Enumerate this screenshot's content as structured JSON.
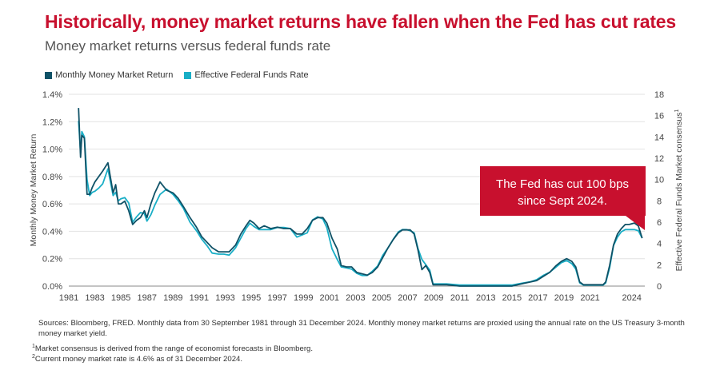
{
  "header": {
    "title": "Historically, money market returns have fallen when the Fed has cut rates",
    "subtitle": "Money market returns versus federal funds rate"
  },
  "legend": {
    "items": [
      {
        "label": "Monthly Money Market Return",
        "color": "#0f5267"
      },
      {
        "label": "Effective Federal Funds Rate",
        "color": "#19aec6"
      }
    ]
  },
  "annotation": {
    "text_line1": "The Fed has cut 100 bps",
    "text_line2": "since Sept 2024.",
    "color": "#c8102e"
  },
  "footnotes": {
    "sources": "Sources: Bloomberg, FRED. Monthly data from 30 September 1981 through 31 December 2024. Monthly money market returns are proxied using the annual rate on the US Treasury 3-month money market yield.",
    "note1_mark": "1",
    "note1": "Market consensus is derived from the range of economist forecasts in Bloomberg.",
    "note2_mark": "2",
    "note2": "Current money market rate is 4.6% as of 31 December 2024."
  },
  "chart_data": {
    "type": "line",
    "title": "Money market returns versus federal funds rate",
    "xlabel": "",
    "ylabel": "Monthly Money Market Return",
    "y2label": "Effective Federal Funds Market consensus",
    "y2label_sup": "1",
    "xlim": [
      1981,
      2025.2
    ],
    "ylim": [
      0,
      1.4
    ],
    "y2lim": [
      0,
      18
    ],
    "x_ticks": [
      "1981",
      "1983",
      "1985",
      "1987",
      "1989",
      "1991",
      "1993",
      "1995",
      "1997",
      "1999",
      "2001",
      "2003",
      "2005",
      "2007",
      "2009",
      "2011",
      "2013",
      "2015",
      "2017",
      "2019",
      "2021",
      "2024"
    ],
    "y_ticks": [
      "0.0%",
      "0.2%",
      "0.4%",
      "0.6%",
      "0.8%",
      "1.0%",
      "1.2%",
      "1.4%"
    ],
    "y2_ticks": [
      "0",
      "2",
      "4",
      "6",
      "8",
      "10",
      "12",
      "14",
      "16",
      "18"
    ],
    "grid": "horizontal",
    "legend_position": "top-left",
    "series": [
      {
        "name": "Monthly Money Market Return",
        "axis": "left",
        "color": "#0f5267",
        "x": [
          1981.75,
          1981.9,
          1982.0,
          1982.2,
          1982.4,
          1982.6,
          1982.8,
          1983.0,
          1983.3,
          1983.6,
          1984.0,
          1984.4,
          1984.6,
          1984.8,
          1985.0,
          1985.3,
          1985.6,
          1985.9,
          1986.2,
          1986.5,
          1986.8,
          1987.0,
          1987.3,
          1987.6,
          1988.0,
          1988.5,
          1989.0,
          1989.4,
          1989.8,
          1990.3,
          1990.8,
          1991.2,
          1991.6,
          1992.0,
          1992.5,
          1992.9,
          1993.3,
          1993.8,
          1994.2,
          1994.6,
          1994.9,
          1995.2,
          1995.6,
          1996.0,
          1996.5,
          1997.0,
          1997.5,
          1998.0,
          1998.5,
          1998.9,
          1999.3,
          1999.7,
          2000.1,
          2000.5,
          2000.8,
          2001.2,
          2001.6,
          2001.9,
          2002.3,
          2002.7,
          2003.1,
          2003.5,
          2003.9,
          2004.3,
          2004.7,
          2005.1,
          2005.5,
          2005.9,
          2006.3,
          2006.6,
          2006.9,
          2007.2,
          2007.5,
          2007.8,
          2008.1,
          2008.4,
          2008.7,
          2008.95,
          2009.3,
          2010.0,
          2011.0,
          2012.0,
          2013.0,
          2014.0,
          2015.0,
          2015.9,
          2016.4,
          2016.9,
          2017.4,
          2017.9,
          2018.4,
          2018.8,
          2019.2,
          2019.6,
          2019.9,
          2020.2,
          2020.5,
          2021.0,
          2021.5,
          2022.0,
          2022.2,
          2022.5,
          2022.8,
          2023.1,
          2023.4,
          2023.7,
          2024.0,
          2024.4,
          2024.7,
          2025.0
        ],
        "y": [
          1.3,
          0.94,
          1.1,
          1.08,
          0.67,
          0.67,
          0.72,
          0.76,
          0.8,
          0.84,
          0.9,
          0.68,
          0.74,
          0.6,
          0.6,
          0.62,
          0.55,
          0.45,
          0.48,
          0.5,
          0.55,
          0.5,
          0.6,
          0.68,
          0.76,
          0.7,
          0.68,
          0.64,
          0.58,
          0.5,
          0.43,
          0.36,
          0.32,
          0.28,
          0.25,
          0.25,
          0.25,
          0.3,
          0.38,
          0.44,
          0.48,
          0.46,
          0.42,
          0.44,
          0.42,
          0.43,
          0.42,
          0.42,
          0.38,
          0.38,
          0.42,
          0.48,
          0.5,
          0.5,
          0.46,
          0.35,
          0.27,
          0.15,
          0.14,
          0.14,
          0.1,
          0.09,
          0.08,
          0.1,
          0.14,
          0.21,
          0.28,
          0.34,
          0.39,
          0.41,
          0.41,
          0.41,
          0.38,
          0.26,
          0.12,
          0.15,
          0.1,
          0.01,
          0.01,
          0.01,
          0.0,
          0.0,
          0.0,
          0.0,
          0.0,
          0.02,
          0.03,
          0.04,
          0.07,
          0.1,
          0.15,
          0.18,
          0.2,
          0.18,
          0.14,
          0.03,
          0.01,
          0.01,
          0.01,
          0.01,
          0.03,
          0.15,
          0.3,
          0.38,
          0.42,
          0.45,
          0.45,
          0.46,
          0.44,
          0.35
        ]
      },
      {
        "name": "Effective Federal Funds Rate",
        "axis": "right",
        "color": "#19aec6",
        "x": [
          1981.75,
          1981.9,
          1982.0,
          1982.2,
          1982.4,
          1982.6,
          1982.8,
          1983.0,
          1983.3,
          1983.6,
          1984.0,
          1984.4,
          1984.6,
          1984.8,
          1985.0,
          1985.3,
          1985.6,
          1985.9,
          1986.2,
          1986.5,
          1986.8,
          1987.0,
          1987.3,
          1987.6,
          1988.0,
          1988.5,
          1989.0,
          1989.4,
          1989.8,
          1990.3,
          1990.8,
          1991.2,
          1991.6,
          1992.0,
          1992.5,
          1992.9,
          1993.3,
          1993.8,
          1994.2,
          1994.6,
          1994.9,
          1995.2,
          1995.6,
          1996.0,
          1996.5,
          1997.0,
          1997.5,
          1998.0,
          1998.5,
          1998.9,
          1999.3,
          1999.7,
          2000.1,
          2000.5,
          2000.8,
          2001.2,
          2001.6,
          2001.9,
          2002.3,
          2002.7,
          2003.1,
          2003.5,
          2003.9,
          2004.3,
          2004.7,
          2005.1,
          2005.5,
          2005.9,
          2006.3,
          2006.6,
          2006.9,
          2007.2,
          2007.5,
          2007.8,
          2008.1,
          2008.4,
          2008.7,
          2008.95,
          2009.3,
          2010.0,
          2011.0,
          2012.0,
          2013.0,
          2014.0,
          2015.0,
          2015.9,
          2016.4,
          2016.9,
          2017.4,
          2017.9,
          2018.4,
          2018.8,
          2019.2,
          2019.6,
          2019.9,
          2020.2,
          2020.5,
          2021.0,
          2021.5,
          2022.0,
          2022.2,
          2022.5,
          2022.8,
          2023.1,
          2023.4,
          2023.7,
          2024.0,
          2024.4,
          2024.7,
          2025.0
        ],
        "y": [
          15.5,
          12.5,
          14.5,
          14.0,
          10.0,
          8.5,
          8.8,
          8.9,
          9.2,
          9.6,
          11.0,
          8.5,
          8.8,
          8.0,
          8.2,
          8.3,
          7.8,
          6.0,
          6.5,
          6.9,
          6.8,
          6.1,
          6.7,
          7.6,
          8.6,
          9.1,
          8.6,
          8.0,
          7.3,
          6.0,
          5.2,
          4.4,
          3.8,
          3.1,
          3.0,
          3.0,
          2.9,
          3.6,
          4.5,
          5.4,
          5.9,
          5.6,
          5.3,
          5.3,
          5.3,
          5.5,
          5.5,
          5.4,
          4.6,
          4.8,
          5.0,
          6.2,
          6.5,
          6.3,
          5.5,
          3.5,
          2.5,
          1.8,
          1.7,
          1.6,
          1.2,
          1.0,
          1.0,
          1.4,
          1.9,
          2.9,
          3.6,
          4.4,
          5.1,
          5.3,
          5.3,
          5.2,
          5.0,
          3.5,
          2.5,
          2.0,
          1.5,
          0.2,
          0.2,
          0.2,
          0.1,
          0.1,
          0.1,
          0.1,
          0.1,
          0.3,
          0.4,
          0.6,
          1.0,
          1.3,
          1.8,
          2.2,
          2.4,
          2.1,
          1.6,
          0.3,
          0.1,
          0.1,
          0.1,
          0.1,
          0.3,
          1.7,
          3.8,
          4.6,
          5.1,
          5.3,
          5.3,
          5.3,
          5.2,
          4.5
        ]
      }
    ]
  }
}
